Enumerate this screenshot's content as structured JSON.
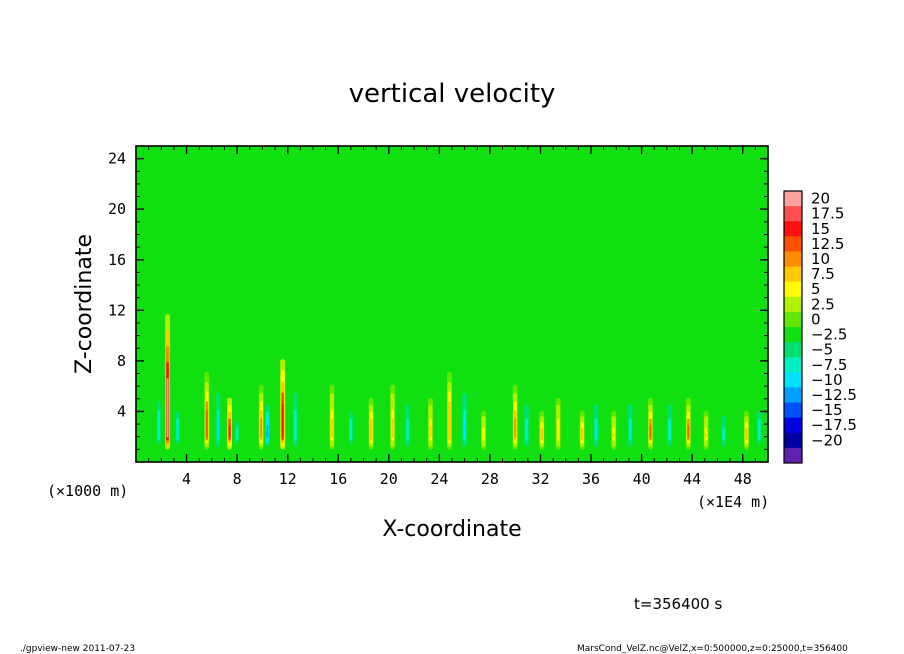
{
  "chart_data": {
    "type": "heatmap",
    "title": "vertical velocity",
    "xlabel": "X-coordinate",
    "ylabel": "Z-coordinate",
    "x_unit_left": "(×1000 m)",
    "x_unit_right": "(×1E4 m)",
    "x_range": [
      0,
      50
    ],
    "y_range": [
      0,
      25
    ],
    "x_ticks": [
      4,
      8,
      12,
      16,
      20,
      24,
      28,
      32,
      36,
      40,
      44,
      48
    ],
    "x_tick_labels": [
      "4",
      "8",
      "12",
      "16",
      "20",
      "24",
      "28",
      "32",
      "36",
      "40",
      "44",
      "48"
    ],
    "y_ticks": [
      4,
      8,
      12,
      16,
      20,
      24
    ],
    "y_tick_labels": [
      "4",
      "8",
      "12",
      "16",
      "20",
      "24"
    ],
    "colorbar": {
      "labels": [
        "20",
        "17.5",
        "15",
        "12.5",
        "10",
        "7.5",
        "5",
        "2.5",
        "0",
        "−2.5",
        "−5",
        "−7.5",
        "−10",
        "−12.5",
        "−15",
        "−17.5",
        "−20"
      ],
      "colors": [
        "#ffa0a0",
        "#ff5050",
        "#ff1010",
        "#ff5000",
        "#ff8c00",
        "#ffc800",
        "#ffff00",
        "#b0f000",
        "#60e800",
        "#10e010",
        "#00e070",
        "#00f0c0",
        "#00e0ff",
        "#00a0ff",
        "#0050ff",
        "#0000e0",
        "#0000a0",
        "#6020b0"
      ],
      "value_range": [
        -20,
        20
      ]
    },
    "background_value": 0,
    "features": [
      {
        "x": 2.5,
        "w": 0.35,
        "sign": 1,
        "amp": 20,
        "ytop": 11.5
      },
      {
        "x": 1.8,
        "w": 0.4,
        "sign": -1,
        "amp": 6,
        "ytop": 6
      },
      {
        "x": 3.3,
        "w": 0.4,
        "sign": -1,
        "amp": 6,
        "ytop": 5
      },
      {
        "x": 5.6,
        "w": 0.35,
        "sign": 1,
        "amp": 12,
        "ytop": 7
      },
      {
        "x": 6.5,
        "w": 0.35,
        "sign": -1,
        "amp": 8,
        "ytop": 6
      },
      {
        "x": 7.4,
        "w": 0.35,
        "sign": 1,
        "amp": 15,
        "ytop": 5
      },
      {
        "x": 8.0,
        "w": 0.35,
        "sign": -1,
        "amp": 6,
        "ytop": 4
      },
      {
        "x": 9.9,
        "w": 0.35,
        "sign": 1,
        "amp": 10,
        "ytop": 6
      },
      {
        "x": 10.4,
        "w": 0.35,
        "sign": -1,
        "amp": 10,
        "ytop": 5
      },
      {
        "x": 11.6,
        "w": 0.35,
        "sign": 1,
        "amp": 16,
        "ytop": 8
      },
      {
        "x": 12.6,
        "w": 0.4,
        "sign": -1,
        "amp": 7,
        "ytop": 6
      },
      {
        "x": 15.5,
        "w": 0.35,
        "sign": 1,
        "amp": 8,
        "ytop": 6
      },
      {
        "x": 17.0,
        "w": 0.4,
        "sign": -1,
        "amp": 6,
        "ytop": 5
      },
      {
        "x": 18.6,
        "w": 0.35,
        "sign": 1,
        "amp": 9,
        "ytop": 5
      },
      {
        "x": 20.3,
        "w": 0.35,
        "sign": 1,
        "amp": 8,
        "ytop": 6
      },
      {
        "x": 21.5,
        "w": 0.4,
        "sign": -1,
        "amp": 7,
        "ytop": 5
      },
      {
        "x": 23.3,
        "w": 0.35,
        "sign": 1,
        "amp": 8,
        "ytop": 5
      },
      {
        "x": 24.8,
        "w": 0.35,
        "sign": 1,
        "amp": 9,
        "ytop": 7
      },
      {
        "x": 26.0,
        "w": 0.4,
        "sign": -1,
        "amp": 8,
        "ytop": 6
      },
      {
        "x": 27.5,
        "w": 0.35,
        "sign": 1,
        "amp": 7,
        "ytop": 4
      },
      {
        "x": 30.0,
        "w": 0.35,
        "sign": 1,
        "amp": 10,
        "ytop": 6
      },
      {
        "x": 30.9,
        "w": 0.4,
        "sign": -1,
        "amp": 7,
        "ytop": 5
      },
      {
        "x": 32.1,
        "w": 0.35,
        "sign": 1,
        "amp": 9,
        "ytop": 4
      },
      {
        "x": 33.4,
        "w": 0.35,
        "sign": 1,
        "amp": 7,
        "ytop": 5
      },
      {
        "x": 35.3,
        "w": 0.35,
        "sign": 1,
        "amp": 9,
        "ytop": 4
      },
      {
        "x": 36.4,
        "w": 0.4,
        "sign": -1,
        "amp": 8,
        "ytop": 5
      },
      {
        "x": 37.8,
        "w": 0.35,
        "sign": 1,
        "amp": 8,
        "ytop": 4
      },
      {
        "x": 39.1,
        "w": 0.4,
        "sign": -1,
        "amp": 7,
        "ytop": 5
      },
      {
        "x": 40.7,
        "w": 0.35,
        "sign": 1,
        "amp": 12,
        "ytop": 5
      },
      {
        "x": 42.2,
        "w": 0.4,
        "sign": -1,
        "amp": 7,
        "ytop": 5
      },
      {
        "x": 43.7,
        "w": 0.35,
        "sign": 1,
        "amp": 12,
        "ytop": 5
      },
      {
        "x": 45.1,
        "w": 0.35,
        "sign": 1,
        "amp": 8,
        "ytop": 4
      },
      {
        "x": 46.5,
        "w": 0.4,
        "sign": -1,
        "amp": 7,
        "ytop": 4
      },
      {
        "x": 48.3,
        "w": 0.35,
        "sign": 1,
        "amp": 9,
        "ytop": 4
      },
      {
        "x": 49.3,
        "w": 0.4,
        "sign": -1,
        "amp": 6,
        "ytop": 5
      }
    ]
  },
  "time_label": "t=356400 s",
  "footer_left": "./gpview-new   2011-07-23",
  "footer_right": "MarsCond_VelZ.nc@VelZ,x=0:500000,z=0:25000,t=356400"
}
